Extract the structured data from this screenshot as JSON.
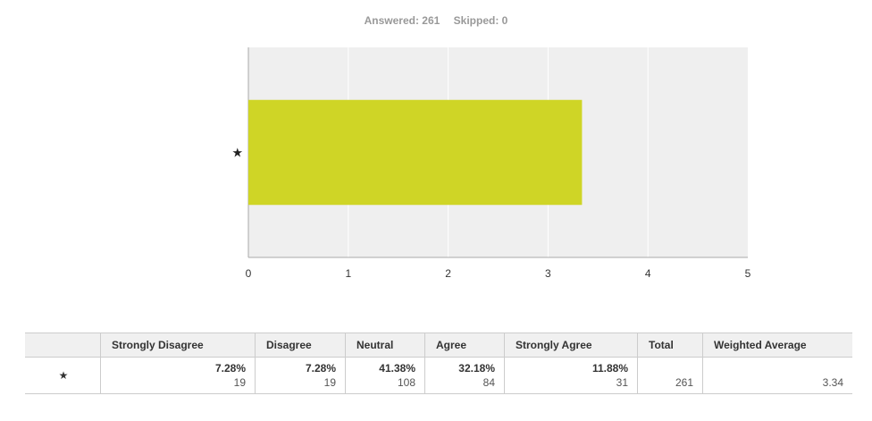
{
  "summary": {
    "answered": "Answered: 261",
    "skipped": "Skipped: 0"
  },
  "colors": {
    "bar": "#cfd526",
    "plot_background": "#efefef",
    "gridline": "#ffffff",
    "axis": "#aaaaaa"
  },
  "chart_data": {
    "type": "bar",
    "orientation": "horizontal",
    "categories": [
      "★"
    ],
    "values": [
      3.34
    ],
    "xlim": [
      0,
      5
    ],
    "xticks": [
      "0",
      "1",
      "2",
      "3",
      "4",
      "5"
    ],
    "title": "",
    "xlabel": "",
    "ylabel": "",
    "grid": true
  },
  "table": {
    "headers": [
      "",
      "Strongly Disagree",
      "Disagree",
      "Neutral",
      "Agree",
      "Strongly Agree",
      "Total",
      "Weighted Average"
    ],
    "row": {
      "label": "★",
      "cells": [
        {
          "pct": "7.28%",
          "count": "19"
        },
        {
          "pct": "7.28%",
          "count": "19"
        },
        {
          "pct": "41.38%",
          "count": "108"
        },
        {
          "pct": "32.18%",
          "count": "84"
        },
        {
          "pct": "11.88%",
          "count": "31"
        }
      ],
      "total": "261",
      "weighted_average": "3.34"
    }
  }
}
